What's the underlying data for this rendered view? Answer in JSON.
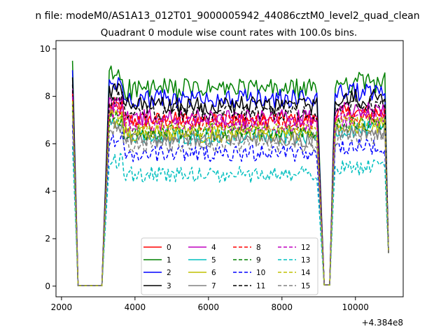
{
  "suptitle": "n file: modeM0/AS1A13_012T01_9000005942_44086cztM0_level2_quad_clean",
  "chart_data": {
    "type": "line",
    "title": "Quadrant 0 module wise count rates with 100.0s bins.",
    "xlabel": "",
    "ylabel": "",
    "x_offset_label": "+4.384e8",
    "xlim": [
      1850,
      11300
    ],
    "ylim": [
      -0.45,
      10.35
    ],
    "x_ticks": [
      2000,
      4000,
      6000,
      8000,
      10000
    ],
    "y_ticks": [
      0,
      2,
      4,
      6,
      8,
      10
    ],
    "grid": false,
    "legend": {
      "placement": "lower-center",
      "columns": 4
    },
    "segment_x": [
      [
        2300,
        2350,
        2400,
        2450,
        2500,
        2550,
        2600,
        2650,
        2700,
        2750,
        2800,
        2850,
        2900,
        2950,
        3000,
        3050,
        3100,
        3150,
        3200,
        3250,
        3300,
        3350,
        3400,
        3450,
        3500,
        3550,
        3600,
        3650,
        3700,
        3750,
        3800,
        3850,
        3900,
        3950,
        4000,
        4050,
        4100,
        4150,
        4200,
        4250,
        4300,
        4350,
        4400,
        4450,
        4500,
        4550,
        4600,
        4650,
        4700,
        4750,
        4800,
        4850,
        4900,
        4950,
        5000,
        5050,
        5100,
        5150,
        5200,
        5250,
        5300,
        5350,
        5400,
        5450,
        5500,
        5550,
        5600,
        5650,
        5700,
        5750,
        5800,
        5850,
        5900,
        5950,
        6000,
        6050,
        6100,
        6150,
        6200,
        6250,
        6300,
        6350,
        6400,
        6450,
        6500,
        6550,
        6600,
        6650,
        6700,
        6750,
        6800,
        6850,
        6900,
        6950,
        7000,
        7050,
        7100,
        7150,
        7200,
        7250,
        7300,
        7350,
        7400,
        7450,
        7500,
        7550,
        7600,
        7650,
        7700,
        7750,
        7800,
        7850,
        7900,
        7950,
        8000,
        8050,
        8100,
        8150,
        8200,
        8250,
        8300,
        8350,
        8400,
        8450,
        8500,
        8550,
        8600,
        8650,
        8700,
        8750,
        8800,
        8850,
        8900,
        8950,
        9000,
        9050,
        9100,
        9150,
        9200,
        9250,
        9300,
        9350,
        9400,
        9450,
        9500,
        9550,
        9600,
        9650,
        9700,
        9750,
        9800,
        9850,
        9900,
        9950,
        10000,
        10050,
        10100,
        10150,
        10200,
        10250,
        10300,
        10350,
        10400,
        10450,
        10500,
        10550,
        10600,
        10650,
        10700,
        10750,
        10800,
        10850,
        10900
      ]
    ],
    "series": [
      {
        "name": "0",
        "color": "#ff0000",
        "dash": "solid",
        "level": 7.0,
        "amp": 0.35,
        "values": []
      },
      {
        "name": "1",
        "color": "#008000",
        "dash": "solid",
        "level": 8.3,
        "amp": 0.45,
        "values": []
      },
      {
        "name": "2",
        "color": "#0000ff",
        "dash": "solid",
        "level": 7.9,
        "amp": 0.4,
        "values": []
      },
      {
        "name": "3",
        "color": "#000000",
        "dash": "solid",
        "level": 7.6,
        "amp": 0.4,
        "values": []
      },
      {
        "name": "4",
        "color": "#bf00bf",
        "dash": "solid",
        "level": 7.1,
        "amp": 0.35,
        "values": []
      },
      {
        "name": "5",
        "color": "#00bfbf",
        "dash": "solid",
        "level": 6.3,
        "amp": 0.35,
        "values": []
      },
      {
        "name": "6",
        "color": "#bfbf00",
        "dash": "solid",
        "level": 6.4,
        "amp": 0.35,
        "values": []
      },
      {
        "name": "7",
        "color": "#808080",
        "dash": "solid",
        "level": 6.2,
        "amp": 0.35,
        "values": []
      },
      {
        "name": "8",
        "color": "#ff0000",
        "dash": "dashed",
        "level": 6.9,
        "amp": 0.35,
        "values": []
      },
      {
        "name": "9",
        "color": "#008000",
        "dash": "dashed",
        "level": 6.5,
        "amp": 0.35,
        "values": []
      },
      {
        "name": "10",
        "color": "#0000ff",
        "dash": "dashed",
        "level": 5.6,
        "amp": 0.35,
        "values": []
      },
      {
        "name": "11",
        "color": "#000000",
        "dash": "dashed",
        "level": 7.3,
        "amp": 0.35,
        "values": []
      },
      {
        "name": "12",
        "color": "#bf00bf",
        "dash": "dashed",
        "level": 6.8,
        "amp": 0.35,
        "values": []
      },
      {
        "name": "13",
        "color": "#00bfbf",
        "dash": "dashed",
        "level": 4.7,
        "amp": 0.35,
        "values": []
      },
      {
        "name": "14",
        "color": "#bfbf00",
        "dash": "dashed",
        "level": 6.6,
        "amp": 0.35,
        "values": []
      },
      {
        "name": "15",
        "color": "#808080",
        "dash": "dashed",
        "level": 6.0,
        "amp": 0.35,
        "values": []
      }
    ]
  }
}
